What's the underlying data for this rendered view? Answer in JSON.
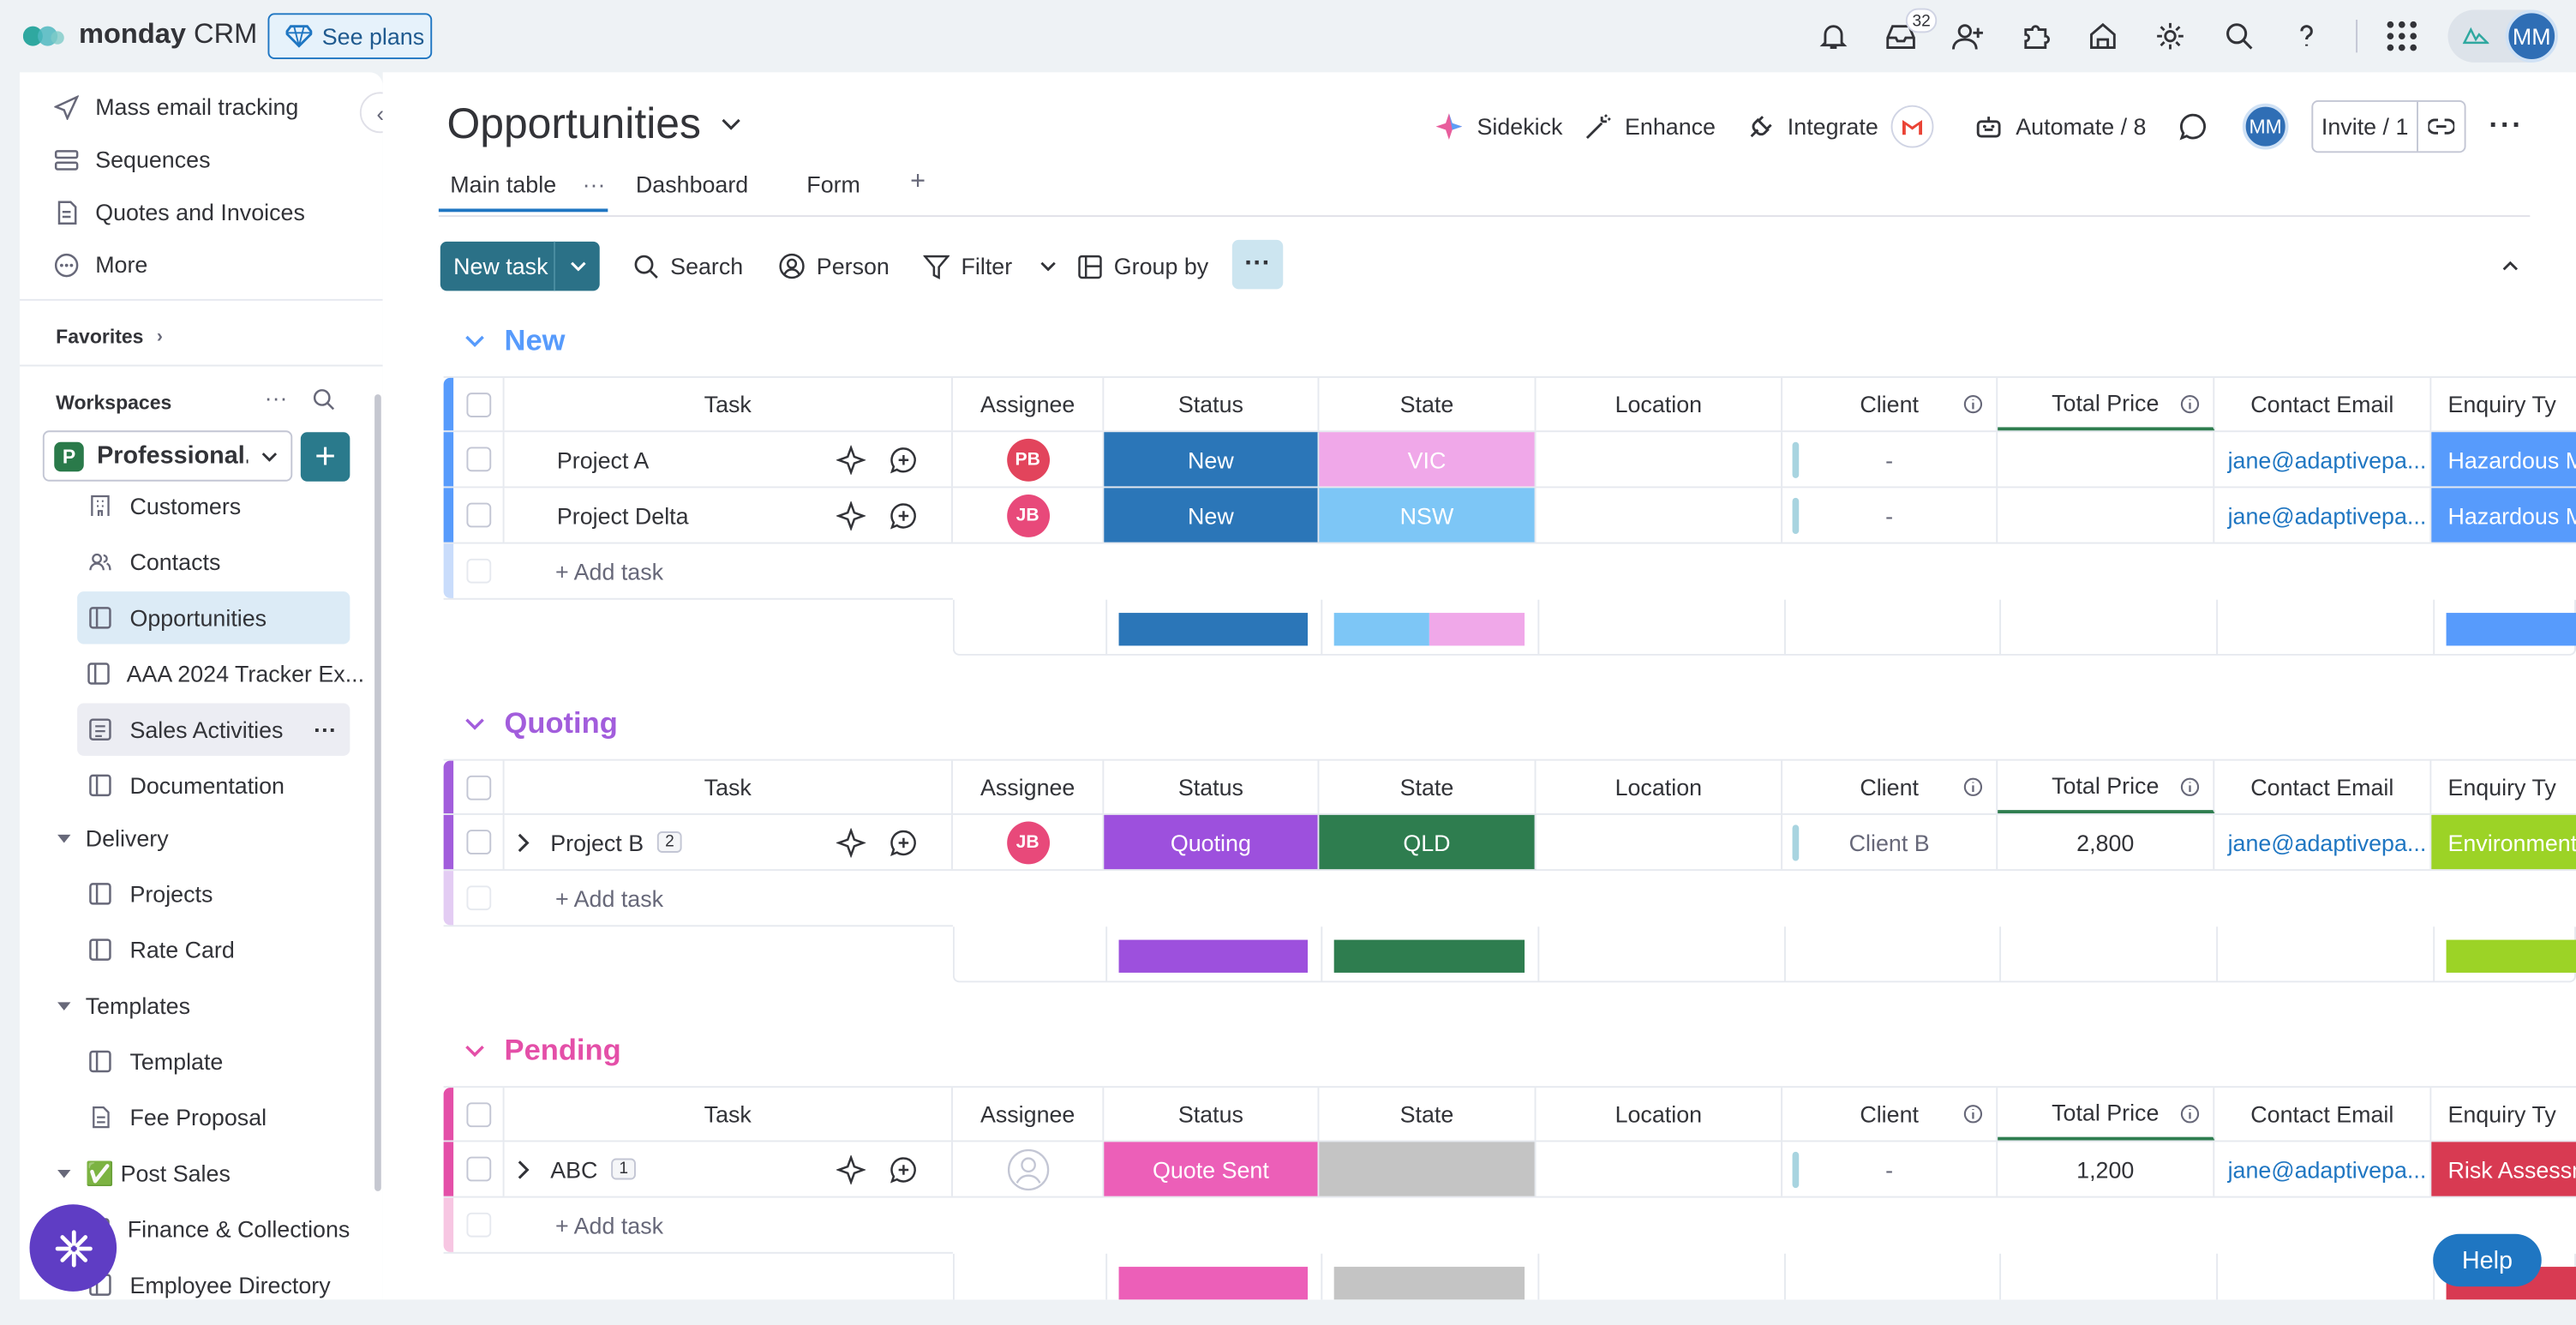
{
  "app": {
    "brand_bold": "monday",
    "brand_light": " CRM",
    "see_plans": "See plans",
    "inbox_count": "32",
    "user_initials": "MM"
  },
  "sidebar": {
    "top_items": [
      "Mass email tracking",
      "Sequences",
      "Quotes and Invoices",
      "More"
    ],
    "favorites": "Favorites",
    "workspaces": "Workspaces",
    "workspace_name": "Professional...",
    "workspace_letter": "P",
    "ws_items": [
      "Customers",
      "Contacts",
      "Opportunities",
      "AAA 2024 Tracker Ex...",
      "Sales Activities",
      "Documentation"
    ],
    "folders": [
      {
        "name": "Delivery",
        "items": [
          "Projects",
          "Rate Card"
        ]
      },
      {
        "name": "Templates",
        "items": [
          "Template",
          "Fee Proposal"
        ]
      },
      {
        "name": "✅ Post Sales",
        "items": [
          "Finance & Collections",
          "Employee Directory"
        ]
      }
    ]
  },
  "header": {
    "title": "Opportunities",
    "sidekick": "Sidekick",
    "enhance": "Enhance",
    "integrate": "Integrate",
    "automate": "Automate / 8",
    "invite": "Invite / 1",
    "user_initials": "MM"
  },
  "tabs": [
    "Main table",
    "Dashboard",
    "Form",
    "+"
  ],
  "toolbar": {
    "new_task": "New task",
    "search": "Search",
    "person": "Person",
    "filter": "Filter",
    "group_by": "Group by"
  },
  "columns": [
    "Task",
    "Assignee",
    "Status",
    "State",
    "Location",
    "Client",
    "Total Price",
    "Contact Email",
    "Enquiry Ty"
  ],
  "add_task": "+ Add task",
  "groups": [
    {
      "name": "New",
      "color": "#579bfc",
      "light": "#c9dcfb",
      "rows": [
        {
          "task": "Project A",
          "sub": "",
          "assignee": "PB",
          "assignee_color": "#e2445c",
          "status": "New",
          "status_color": "#2b76b8",
          "state": "VIC",
          "state_color": "#f0a8e9",
          "client": "-",
          "price": "",
          "email": "jane@adaptivepa...",
          "enquiry": "Hazardous M",
          "enquiry_color": "#579bfc"
        },
        {
          "task": "Project Delta",
          "sub": "",
          "assignee": "JB",
          "assignee_color": "#e8497a",
          "status": "New",
          "status_color": "#2b76b8",
          "state": "NSW",
          "state_color": "#7dc6f6",
          "client": "-",
          "price": "",
          "email": "jane@adaptivepa...",
          "enquiry": "Hazardous M",
          "enquiry_color": "#579bfc"
        }
      ],
      "summary": {
        "status": [
          {
            "c": "#2b76b8",
            "w": 1
          }
        ],
        "state": [
          {
            "c": "#7dc6f6",
            "w": 0.5
          },
          {
            "c": "#f0a8e9",
            "w": 0.5
          }
        ],
        "enquiry": "#579bfc"
      }
    },
    {
      "name": "Quoting",
      "color": "#a25ddc",
      "light": "#e3ccf3",
      "rows": [
        {
          "task": "Project B",
          "sub": "2",
          "assignee": "JB",
          "assignee_color": "#e8497a",
          "status": "Quoting",
          "status_color": "#9d50dd",
          "state": "QLD",
          "state_color": "#2e7d4f",
          "client": "Client B",
          "price": "2,800",
          "email": "jane@adaptivepa...",
          "enquiry": "Environmenta",
          "enquiry_color": "#9cd326"
        }
      ],
      "summary": {
        "status": [
          {
            "c": "#9d50dd",
            "w": 1
          }
        ],
        "state": [
          {
            "c": "#2e7d4f",
            "w": 1
          }
        ],
        "enquiry": "#9cd326"
      }
    },
    {
      "name": "Pending",
      "color": "#e44fa8",
      "light": "#f7c6e2",
      "rows": [
        {
          "task": "ABC",
          "sub": "1",
          "assignee": "",
          "assignee_color": "",
          "status": "Quote Sent",
          "status_color": "#ec5fb8",
          "state": "",
          "state_color": "#c4c4c4",
          "client": "-",
          "price": "1,200",
          "email": "jane@adaptivepa...",
          "enquiry": "Risk Assessm",
          "enquiry_color": "#d83a52"
        }
      ],
      "summary": {
        "status": [
          {
            "c": "#ec5fb8",
            "w": 1
          }
        ],
        "state": [
          {
            "c": "#c4c4c4",
            "w": 1
          }
        ],
        "enquiry": "#d83a52"
      }
    }
  ],
  "help": "Help"
}
